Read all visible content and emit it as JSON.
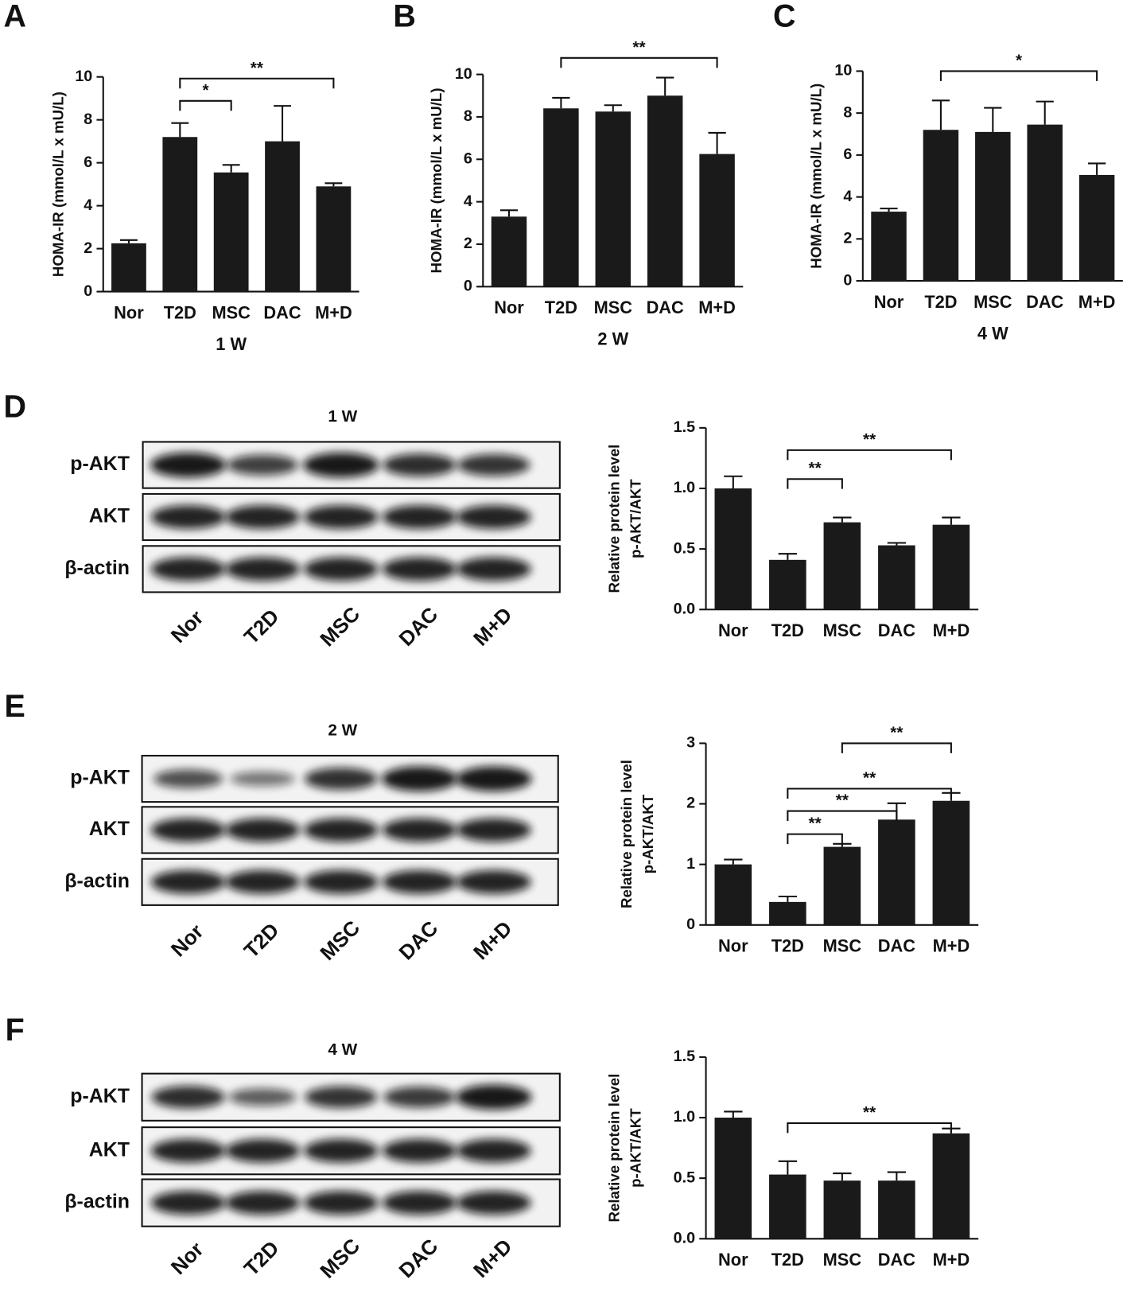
{
  "chart_data": [
    {
      "type": "bar",
      "panel": "A",
      "xlabel": "1 W",
      "ylabel": "HOMA-IR  (mmol/L x mU/L)",
      "categories": [
        "Nor",
        "T2D",
        "MSC",
        "DAC",
        "M+D"
      ],
      "values": [
        2.25,
        7.2,
        5.55,
        7.0,
        4.9
      ],
      "errors": [
        0.15,
        0.65,
        0.35,
        1.65,
        0.15
      ],
      "color": "#1a1a1a",
      "ylim": [
        0,
        10
      ],
      "yticks": [
        0,
        2,
        4,
        6,
        8,
        10
      ],
      "annotations": [
        {
          "from": "T2D",
          "to": "MSC",
          "label": "*"
        },
        {
          "from": "T2D",
          "to": "M+D",
          "label": "**"
        }
      ]
    },
    {
      "type": "bar",
      "panel": "B",
      "xlabel": "2 W",
      "ylabel": "HOMA-IR (mmol/L x mU/L)",
      "categories": [
        "Nor",
        "T2D",
        "MSC",
        "DAC",
        "M+D"
      ],
      "values": [
        3.3,
        8.4,
        8.25,
        9.0,
        6.25
      ],
      "errors": [
        0.3,
        0.5,
        0.3,
        0.85,
        1.0
      ],
      "color": "#1a1a1a",
      "ylim": [
        0,
        10
      ],
      "yticks": [
        0,
        2,
        4,
        6,
        8,
        10
      ],
      "annotations": [
        {
          "from": "T2D",
          "to": "M+D",
          "label": "**"
        }
      ]
    },
    {
      "type": "bar",
      "panel": "C",
      "xlabel": "4 W",
      "ylabel": "HOMA-IR (mmol/L x mU/L)",
      "categories": [
        "Nor",
        "T2D",
        "MSC",
        "DAC",
        "M+D"
      ],
      "values": [
        3.3,
        7.2,
        7.1,
        7.45,
        5.05
      ],
      "errors": [
        0.15,
        1.4,
        1.15,
        1.1,
        0.55
      ],
      "color": "#1a1a1a",
      "ylim": [
        0,
        10
      ],
      "yticks": [
        0,
        2,
        4,
        6,
        8,
        10
      ],
      "annotations": [
        {
          "from": "T2D",
          "to": "M+D",
          "label": "*"
        }
      ]
    },
    {
      "type": "bar",
      "ylabel": [
        "Relative protein level",
        "p-AKT/AKT"
      ],
      "categories": [
        "Nor",
        "T2D",
        "MSC",
        "DAC",
        "M+D"
      ],
      "values": [
        1.0,
        0.41,
        0.72,
        0.53,
        0.7
      ],
      "errors": [
        0.1,
        0.05,
        0.04,
        0.02,
        0.06
      ],
      "color": "#1a1a1a",
      "ylim": [
        0,
        1.5
      ],
      "yticks": [
        {
          "value": 0,
          "label": "0.0"
        },
        {
          "value": 0.5,
          "label": "0.5"
        },
        {
          "value": 1,
          "label": "1.0"
        },
        {
          "value": 1.5,
          "label": "1.5"
        }
      ],
      "annotations": [
        {
          "from": "T2D",
          "to": "MSC",
          "label": "**"
        },
        {
          "from": "T2D",
          "to": "M+D",
          "label": "**"
        }
      ]
    },
    {
      "type": "bar",
      "ylabel": [
        "Relative protein level",
        "p-AKT/AKT"
      ],
      "categories": [
        "Nor",
        "T2D",
        "MSC",
        "DAC",
        "M+D"
      ],
      "values": [
        1.0,
        0.38,
        1.29,
        1.74,
        2.05
      ],
      "errors": [
        0.08,
        0.09,
        0.05,
        0.27,
        0.13
      ],
      "color": "#1a1a1a",
      "ylim": [
        0,
        3
      ],
      "yticks": [
        0,
        1,
        2,
        3
      ],
      "annotations": [
        {
          "from": "T2D",
          "to": "MSC",
          "label": "**"
        },
        {
          "from": "T2D",
          "to": "DAC",
          "label": "**"
        },
        {
          "from": "T2D",
          "to": "M+D",
          "label": "**"
        },
        {
          "from": "MSC",
          "to": "M+D",
          "label": "**"
        }
      ]
    },
    {
      "type": "bar",
      "ylabel": [
        "Relative protein level",
        "p-AKT/AKT"
      ],
      "categories": [
        "Nor",
        "T2D",
        "MSC",
        "DAC",
        "M+D"
      ],
      "values": [
        1.0,
        0.53,
        0.48,
        0.48,
        0.87
      ],
      "errors": [
        0.05,
        0.11,
        0.06,
        0.07,
        0.04
      ],
      "color": "#1a1a1a",
      "ylim": [
        0,
        1.5
      ],
      "yticks": [
        {
          "value": 0,
          "label": "0.0"
        },
        {
          "value": 0.5,
          "label": "0.5"
        },
        {
          "value": 1,
          "label": "1.0"
        },
        {
          "value": 1.5,
          "label": "1.5"
        }
      ],
      "annotations": [
        {
          "from": "T2D",
          "to": "M+D",
          "label": "**"
        }
      ]
    }
  ],
  "blots": [
    {
      "panel": "D",
      "title": "1 W",
      "rows": [
        "p-AKT",
        "AKT",
        "β-actin"
      ],
      "lanes": [
        "Nor",
        "T2D",
        "MSC",
        "DAC",
        "M+D"
      ]
    },
    {
      "panel": "E",
      "title": "2 W",
      "rows": [
        "p-AKT",
        "AKT",
        "β-actin"
      ],
      "lanes": [
        "Nor",
        "T2D",
        "MSC",
        "DAC",
        "M+D"
      ]
    },
    {
      "panel": "F",
      "title": "4 W",
      "rows": [
        "p-AKT",
        "AKT",
        "β-actin"
      ],
      "lanes": [
        "Nor",
        "T2D",
        "MSC",
        "DAC",
        "M+D"
      ]
    }
  ]
}
